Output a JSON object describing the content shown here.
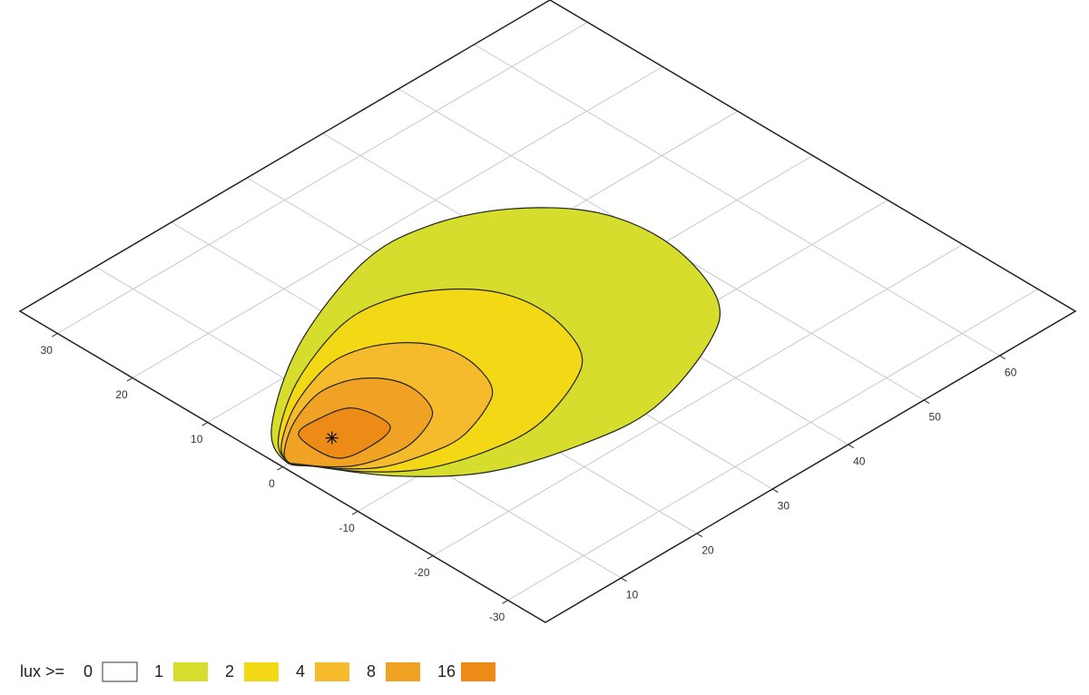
{
  "chart_data": {
    "type": "contour",
    "xlim": [
      0,
      70
    ],
    "ylim": [
      -35,
      35
    ],
    "xticks": [
      10,
      20,
      30,
      40,
      50,
      60
    ],
    "yticks": [
      -30,
      -20,
      -10,
      0,
      10,
      20,
      30
    ],
    "grid": true,
    "legend": {
      "label": "lux >=",
      "levels": [
        0,
        1,
        2,
        4,
        8,
        16
      ],
      "colors": [
        "#ffffff",
        "#d6dd2c",
        "#f3d816",
        "#f6bb2c",
        "#f0a225",
        "#ec8c16"
      ]
    },
    "contours": [
      {
        "x": [
          0.8,
          3.8,
          14.8,
          28.1,
          36.4,
          43.9,
          49.4,
          50.6,
          47.6,
          41.9,
          31.1,
          22.3,
          13.2,
          6.7,
          2.3
        ],
        "y": [
          0.5,
          5.3,
          12.7,
          17.7,
          17.6,
          14.1,
          7.7,
          -0.7,
          -9.9,
          -14.4,
          -18.0,
          -17.3,
          -14.3,
          -8.8,
          -2.3
        ]
      },
      {
        "x": [
          0.9,
          3.0,
          10.4,
          19.4,
          25.1,
          30.2,
          33.9,
          34.7,
          32.7,
          28.8,
          21.5,
          15.5,
          9.3,
          4.9,
          1.9
        ],
        "y": [
          0.3,
          3.6,
          8.6,
          12.0,
          12.0,
          9.6,
          5.2,
          -0.5,
          -6.7,
          -9.8,
          -12.2,
          -11.8,
          -9.7,
          -6.0,
          -1.6
        ]
      },
      {
        "x": [
          0.9,
          2.3,
          7.5,
          13.7,
          17.6,
          21.2,
          23.7,
          24.3,
          22.9,
          20.2,
          15.1,
          11.0,
          6.7,
          3.7,
          1.6
        ],
        "y": [
          0.2,
          2.5,
          6.0,
          8.3,
          8.3,
          6.6,
          3.6,
          -0.3,
          -4.7,
          -6.8,
          -8.5,
          -8.1,
          -6.7,
          -4.1,
          -1.1
        ]
      },
      {
        "x": [
          0.9,
          1.9,
          5.6,
          9.9,
          12.7,
          15.2,
          17.0,
          17.4,
          16.4,
          14.5,
          11.0,
          8.0,
          5.0,
          2.9,
          1.4
        ],
        "y": [
          0.2,
          1.7,
          4.2,
          5.8,
          5.8,
          4.7,
          2.5,
          -0.2,
          -3.3,
          -4.8,
          -5.9,
          -5.7,
          -4.7,
          -2.9,
          -0.8
        ]
      },
      {
        "x": [
          4.6,
          8.0,
          11.3,
          11.7,
          8.0,
          4.5
        ],
        "y": [
          2.5,
          3.0,
          1.9,
          -2.5,
          -3.5,
          -2.5
        ]
      }
    ],
    "luminaire": {
      "x": 6.5,
      "y": 0
    }
  }
}
